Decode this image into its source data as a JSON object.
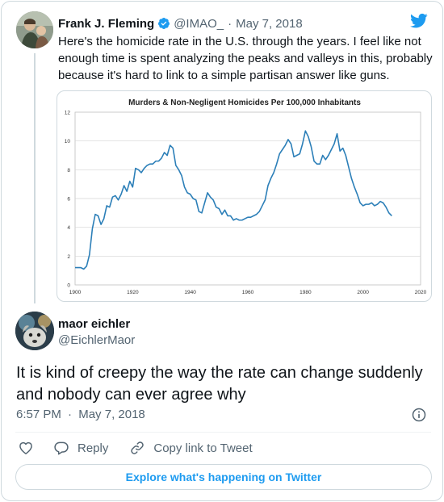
{
  "quoted_tweet": {
    "author_name": "Frank J. Fleming",
    "handle": "@IMAO_",
    "separator": "·",
    "date": "May 7, 2018",
    "text": "Here's the homicide rate in the U.S. through the years. I feel like not enough time is spent analyzing the peaks and valleys in this, probably because it's hard to link to a simple partisan answer like guns."
  },
  "chart_data": {
    "type": "line",
    "title": "Murders & Non-Negligent Homicides Per 100,000 Inhabitants",
    "xlabel": "",
    "ylabel": "",
    "xlim": [
      1900,
      2020
    ],
    "ylim": [
      0,
      12
    ],
    "x_ticks": [
      "1900",
      "1920",
      "1940",
      "1960",
      "1980",
      "2000",
      "2020"
    ],
    "y_ticks": [
      "0",
      "2",
      "4",
      "6",
      "8",
      "10",
      "12"
    ],
    "grid": true,
    "line_color": "#2c7fb8",
    "x": [
      1900,
      1901,
      1902,
      1903,
      1904,
      1905,
      1906,
      1907,
      1908,
      1909,
      1910,
      1911,
      1912,
      1913,
      1914,
      1915,
      1916,
      1917,
      1918,
      1919,
      1920,
      1921,
      1922,
      1923,
      1924,
      1925,
      1926,
      1927,
      1928,
      1929,
      1930,
      1931,
      1932,
      1933,
      1934,
      1935,
      1936,
      1937,
      1938,
      1939,
      1940,
      1941,
      1942,
      1943,
      1944,
      1945,
      1946,
      1947,
      1948,
      1949,
      1950,
      1951,
      1952,
      1953,
      1954,
      1955,
      1956,
      1957,
      1958,
      1959,
      1960,
      1961,
      1962,
      1963,
      1964,
      1965,
      1966,
      1967,
      1968,
      1969,
      1970,
      1971,
      1972,
      1973,
      1974,
      1975,
      1976,
      1977,
      1978,
      1979,
      1980,
      1981,
      1982,
      1983,
      1984,
      1985,
      1986,
      1987,
      1988,
      1989,
      1990,
      1991,
      1992,
      1993,
      1994,
      1995,
      1996,
      1997,
      1998,
      1999,
      2000,
      2001,
      2002,
      2003,
      2004,
      2005,
      2006,
      2007,
      2008,
      2009,
      2010
    ],
    "y": [
      1.2,
      1.2,
      1.2,
      1.1,
      1.3,
      2.1,
      3.9,
      4.9,
      4.8,
      4.2,
      4.6,
      5.5,
      5.4,
      6.1,
      6.2,
      5.9,
      6.3,
      6.9,
      6.5,
      7.2,
      6.8,
      8.1,
      8.0,
      7.8,
      8.1,
      8.3,
      8.4,
      8.4,
      8.6,
      8.6,
      8.8,
      9.2,
      9.0,
      9.7,
      9.5,
      8.3,
      8.0,
      7.6,
      6.8,
      6.4,
      6.3,
      6.0,
      5.9,
      5.1,
      5.0,
      5.7,
      6.4,
      6.1,
      5.9,
      5.4,
      5.3,
      4.9,
      5.2,
      4.8,
      4.8,
      4.5,
      4.6,
      4.5,
      4.5,
      4.6,
      4.7,
      4.7,
      4.8,
      4.9,
      5.1,
      5.5,
      5.9,
      6.9,
      7.4,
      7.8,
      8.4,
      9.1,
      9.4,
      9.7,
      10.1,
      9.8,
      8.9,
      9.0,
      9.1,
      9.8,
      10.7,
      10.3,
      9.6,
      8.6,
      8.4,
      8.4,
      9.0,
      8.7,
      9.0,
      9.4,
      9.8,
      10.5,
      9.3,
      9.5,
      9.0,
      8.2,
      7.4,
      6.8,
      6.3,
      5.7,
      5.5,
      5.6,
      5.6,
      5.7,
      5.5,
      5.6,
      5.8,
      5.7,
      5.4,
      5.0,
      4.8
    ]
  },
  "reply_tweet": {
    "author_name": "maor eichler",
    "handle": "@EichlerMaor",
    "text": "It is kind of creepy the way the rate can change suddenly and nobody can ever agree why",
    "time": "6:57 PM",
    "separator": "·",
    "date": "May 7, 2018"
  },
  "actions": {
    "reply_label": "Reply",
    "copy_label": "Copy link to Tweet"
  },
  "explore_label": "Explore what's happening on Twitter",
  "colors": {
    "accent": "#1d9bf0",
    "text_primary": "#0f1419",
    "text_secondary": "#536471",
    "border": "#cfd9de"
  },
  "icons": {
    "twitter": "twitter-bird-icon",
    "verified": "verified-badge-icon",
    "info": "info-icon",
    "like": "heart-icon",
    "reply": "reply-bubble-icon",
    "copy": "link-icon"
  }
}
